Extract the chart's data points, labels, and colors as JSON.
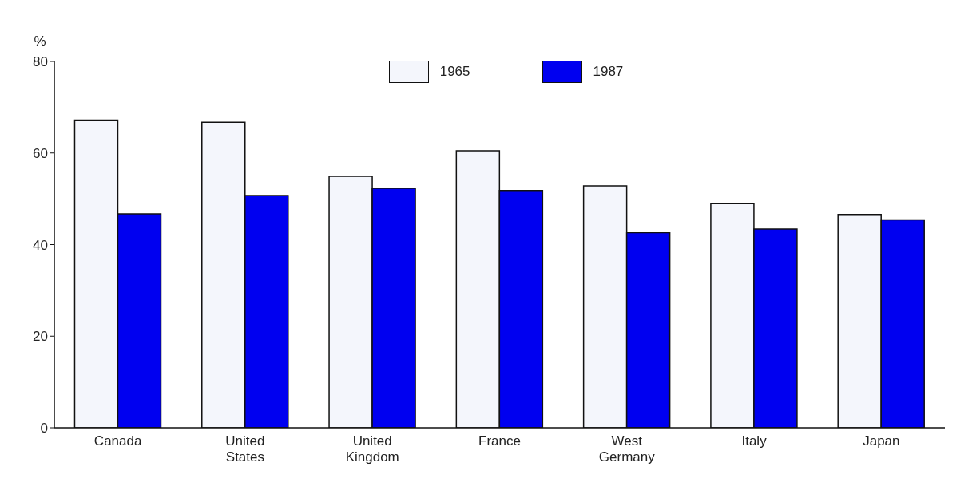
{
  "chart_data": {
    "type": "bar",
    "ylabel": "%",
    "categories": [
      "Canada",
      "United States",
      "United Kingdom",
      "France",
      "West Germany",
      "Italy",
      "Japan"
    ],
    "series": [
      {
        "name": "1965",
        "color": "#f4f6fc",
        "values": [
          67.2,
          66.7,
          54.9,
          60.5,
          52.8,
          49.0,
          46.6
        ]
      },
      {
        "name": "1987",
        "color": "#0000f0",
        "values": [
          46.7,
          50.7,
          52.3,
          51.8,
          42.6,
          43.4,
          45.4
        ]
      }
    ],
    "ylim": [
      0,
      80
    ],
    "yticks": [
      0,
      20,
      40,
      60,
      80
    ],
    "grid": false,
    "legend": "top"
  }
}
